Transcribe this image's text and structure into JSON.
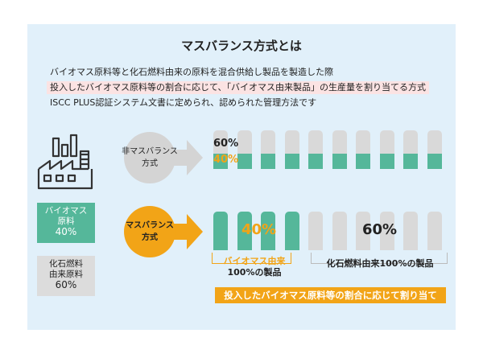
{
  "title": "マスバランス方式とは",
  "description": {
    "line1": "バイオマス原料等と化石燃料由来の原料を混合供給し製品を製造した際",
    "line2": "投入したバイオマス原料等の割合に応じて、「バイオマス由来製品」の生産量を割り当てる方式",
    "line3": "ISCC PLUS認証システム文書に定められ、認められた管理方法です"
  },
  "legend": {
    "biomass": {
      "label_line1": "バイオマス",
      "label_line2": "原料",
      "percent": "40%"
    },
    "fossil": {
      "label_line1": "化石燃料",
      "label_line2": "由来原料",
      "percent": "60%"
    }
  },
  "non_mass_balance": {
    "label_line1": "非マスバランス",
    "label_line2": "方式",
    "fossil_pct": "60%",
    "biomass_pct": "40%",
    "biomass_fraction": 0.4
  },
  "mass_balance": {
    "label_line1": "マスバランス",
    "label_line2": "方式",
    "biomass_pct": "40%",
    "fossil_pct": "60%",
    "biomass_product_count": 4,
    "biomass_group_line1": "バイオマス由来",
    "biomass_group_line2": "100%の製品",
    "fossil_group_label": "化石燃料由来100%の製品"
  },
  "product_count": 10,
  "banner": "投入したバイオマス原料等の割合に応じて割り当て",
  "colors": {
    "biomass": "#55b79a",
    "fossil": "#d9d9d9",
    "accent": "#f2a417",
    "background": "#e1f0fa"
  }
}
